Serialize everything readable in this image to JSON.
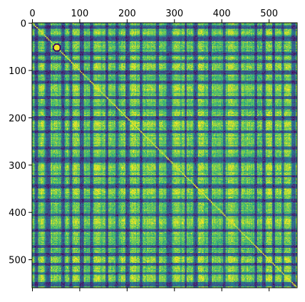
{
  "chart_data": {
    "type": "heatmap",
    "title": "",
    "xlabel": "",
    "ylabel": "",
    "matrix_size": 560,
    "xlim": [
      0,
      560
    ],
    "ylim": [
      560,
      0
    ],
    "x_ticks": [
      0,
      100,
      200,
      300,
      400,
      500
    ],
    "y_ticks": [
      0,
      100,
      200,
      300,
      400,
      500
    ],
    "x_tick_labels": [
      "0",
      "100",
      "200",
      "300",
      "400",
      "500"
    ],
    "y_tick_labels": [
      "0",
      "100",
      "200",
      "300",
      "400",
      "500"
    ],
    "x_axis_position": "top",
    "colormap": "viridis",
    "value_range": [
      0,
      1
    ],
    "diagonal_value": 1,
    "colors": {
      "low": "#440154",
      "mid": "#21918c",
      "high": "#fde725"
    },
    "low_similarity_bands": [
      [
        5,
        12
      ],
      [
        28,
        38
      ],
      [
        61,
        68
      ],
      [
        79,
        84
      ],
      [
        101,
        108
      ],
      [
        122,
        128
      ],
      [
        155,
        160
      ],
      [
        176,
        182
      ],
      [
        197,
        205
      ],
      [
        227,
        232
      ],
      [
        261,
        267
      ],
      [
        284,
        295
      ],
      [
        322,
        326
      ],
      [
        341,
        349
      ],
      [
        372,
        378
      ],
      [
        403,
        408
      ],
      [
        436,
        441
      ],
      [
        470,
        475
      ],
      [
        486,
        492
      ],
      [
        507,
        512
      ],
      [
        528,
        531
      ],
      [
        548,
        556
      ]
    ],
    "high_similarity_bands": [
      [
        18,
        24
      ],
      [
        88,
        96
      ],
      [
        133,
        142
      ],
      [
        210,
        219
      ],
      [
        300,
        310
      ],
      [
        352,
        362
      ],
      [
        414,
        424
      ],
      [
        496,
        503
      ],
      [
        535,
        543
      ]
    ],
    "highlight_block": {
      "center": [
        52,
        52
      ],
      "radius": 7
    }
  }
}
